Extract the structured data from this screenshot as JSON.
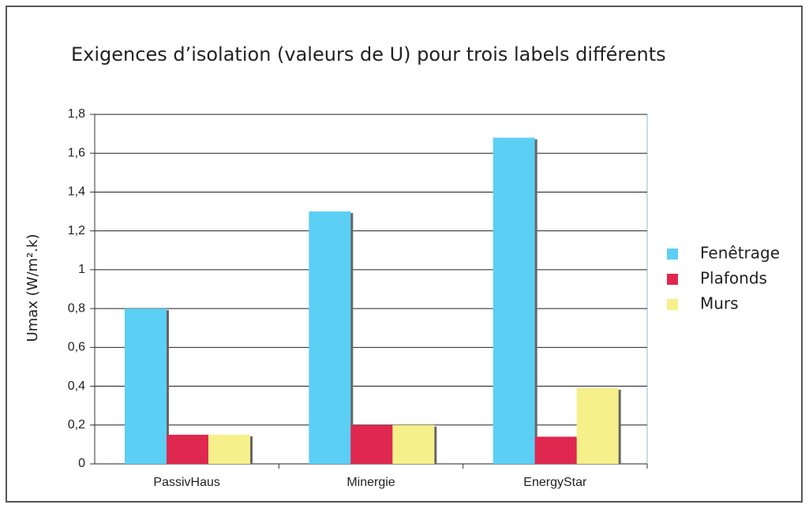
{
  "chart_data": {
    "type": "bar",
    "title": "Exigences d’isolation (valeurs de U) pour trois labels différents",
    "y_label": "Umax (W/m².k)",
    "categories": [
      "PassivHaus",
      "Minergie",
      "EnergyStar"
    ],
    "series": [
      {
        "name": "Fenêtrage",
        "color": "#5ccff5",
        "values": [
          0.8,
          1.3,
          1.68
        ]
      },
      {
        "name": "Plafonds",
        "color": "#e0274f",
        "values": [
          0.15,
          0.2,
          0.14
        ]
      },
      {
        "name": "Murs",
        "color": "#f5f08a",
        "values": [
          0.15,
          0.2,
          0.39
        ]
      }
    ],
    "ylim": [
      0,
      1.8
    ],
    "yticks": [
      0,
      {
        "value": 0.2,
        "label": "0,2"
      },
      {
        "value": 0.4,
        "label": "0,4"
      },
      {
        "value": 0.6,
        "label": "0,6"
      },
      {
        "value": 0.8,
        "label": "0,8"
      },
      1,
      {
        "value": 1.2,
        "label": "1,2"
      },
      {
        "value": 1.4,
        "label": "1,4"
      },
      {
        "value": 1.6,
        "label": "1,6"
      },
      {
        "value": 1.8,
        "label": "1,8"
      }
    ],
    "grid": true,
    "legend": "right"
  }
}
